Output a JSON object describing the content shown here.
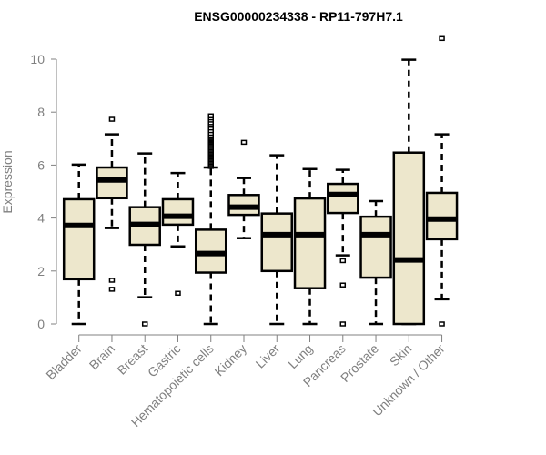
{
  "chart_data": {
    "type": "boxplot",
    "title": "ENSG00000234338 - RP11-797H7.1",
    "xlabel": "",
    "ylabel": "Expression",
    "ylim": [
      0,
      10
    ],
    "yticks": [
      0,
      2,
      4,
      6,
      8,
      10
    ],
    "grid": false,
    "colors": {
      "box_fill": "#ede7cc",
      "stroke": "#000000",
      "axis_text": "#808080",
      "axis_line": "#808080"
    },
    "categories": [
      "Bladder",
      "Brain",
      "Breast",
      "Gastric",
      "Hematopoietic cells",
      "Kidney",
      "Liver",
      "Lung",
      "Pancreas",
      "Prostate",
      "Skin",
      "Unknown / Other"
    ],
    "boxes": [
      {
        "low": 0,
        "q1": 1.69,
        "median": 3.72,
        "q3": 4.71,
        "high": 6.02,
        "outliers": []
      },
      {
        "low": 3.62,
        "q1": 4.75,
        "median": 5.44,
        "q3": 5.91,
        "high": 7.16,
        "outliers": [
          7.73,
          1.65,
          1.31
        ]
      },
      {
        "low": 1.01,
        "q1": 2.99,
        "median": 3.76,
        "q3": 4.41,
        "high": 6.44,
        "outliers": [
          0
        ]
      },
      {
        "low": 2.93,
        "q1": 3.75,
        "median": 4.07,
        "q3": 4.71,
        "high": 5.7,
        "outliers": [
          1.16
        ]
      },
      {
        "low": 0,
        "q1": 1.94,
        "median": 2.66,
        "q3": 3.56,
        "high": 5.91,
        "outliers": [
          5.95,
          6.0,
          6.05,
          6.1,
          6.15,
          6.2,
          6.25,
          6.3,
          6.35,
          6.4,
          6.45,
          6.5,
          6.55,
          6.6,
          6.65,
          6.7,
          6.75,
          6.8,
          6.85,
          6.9,
          6.95,
          7.0,
          7.05,
          7.1,
          7.2,
          7.3,
          7.4,
          7.5,
          7.6,
          7.7,
          7.78,
          7.86
        ]
      },
      {
        "low": 3.24,
        "q1": 4.12,
        "median": 4.41,
        "q3": 4.87,
        "high": 5.51,
        "outliers": [
          6.86
        ]
      },
      {
        "low": 0,
        "q1": 2.0,
        "median": 3.37,
        "q3": 4.17,
        "high": 6.37,
        "outliers": []
      },
      {
        "low": 0,
        "q1": 1.35,
        "median": 3.37,
        "q3": 4.74,
        "high": 5.85,
        "outliers": []
      },
      {
        "low": 2.59,
        "q1": 4.19,
        "median": 4.89,
        "q3": 5.29,
        "high": 5.82,
        "outliers": [
          2.39,
          1.47,
          0
        ]
      },
      {
        "low": 0,
        "q1": 1.75,
        "median": 3.37,
        "q3": 4.05,
        "high": 4.64,
        "outliers": []
      },
      {
        "low": 0,
        "q1": 0,
        "median": 2.42,
        "q3": 6.47,
        "high": 9.98,
        "outliers": []
      },
      {
        "low": 0.93,
        "q1": 3.2,
        "median": 3.96,
        "q3": 4.95,
        "high": 7.16,
        "outliers": [
          10.78,
          0
        ]
      }
    ]
  }
}
